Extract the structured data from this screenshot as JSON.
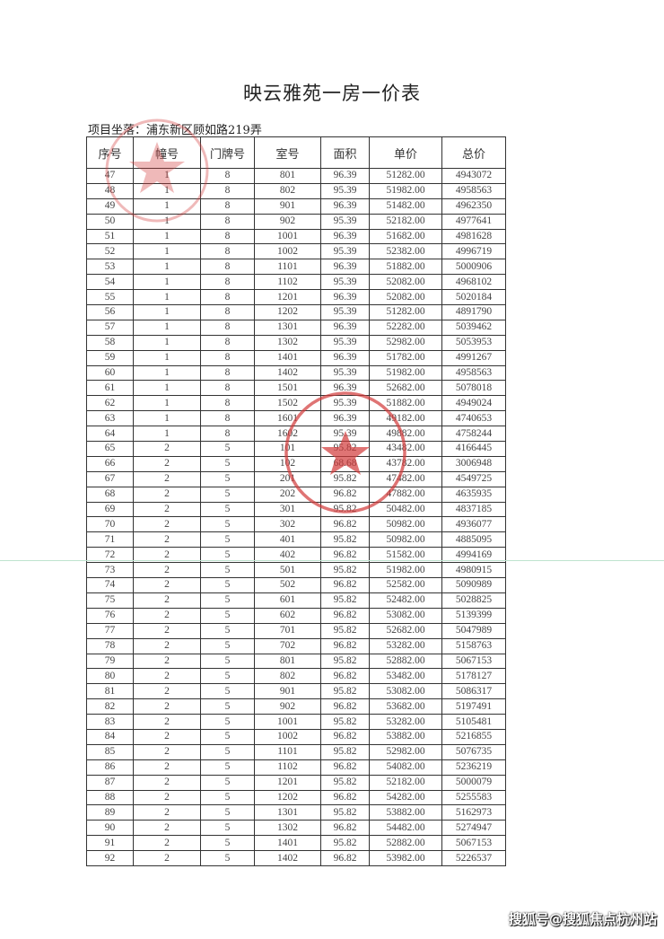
{
  "document": {
    "title": "映云雅苑一房一价表",
    "address": "项目坐落：浦东新区顾如路219弄",
    "watermark": "搜狐号@搜狐焦点杭州站",
    "stamp_color": "#d23a3a"
  },
  "table": {
    "headers": [
      "序号",
      "幢号",
      "门牌号",
      "室号",
      "面积",
      "单价",
      "总价"
    ],
    "rows": [
      [
        "47",
        "1",
        "8",
        "801",
        "96.39",
        "51282.00",
        "4943072"
      ],
      [
        "48",
        "1",
        "8",
        "802",
        "95.39",
        "51982.00",
        "4958563"
      ],
      [
        "49",
        "1",
        "8",
        "901",
        "96.39",
        "51482.00",
        "4962350"
      ],
      [
        "50",
        "1",
        "8",
        "902",
        "95.39",
        "52182.00",
        "4977641"
      ],
      [
        "51",
        "1",
        "8",
        "1001",
        "96.39",
        "51682.00",
        "4981628"
      ],
      [
        "52",
        "1",
        "8",
        "1002",
        "95.39",
        "52382.00",
        "4996719"
      ],
      [
        "53",
        "1",
        "8",
        "1101",
        "96.39",
        "51882.00",
        "5000906"
      ],
      [
        "54",
        "1",
        "8",
        "1102",
        "95.39",
        "52082.00",
        "4968102"
      ],
      [
        "55",
        "1",
        "8",
        "1201",
        "96.39",
        "52082.00",
        "5020184"
      ],
      [
        "56",
        "1",
        "8",
        "1202",
        "95.39",
        "51282.00",
        "4891790"
      ],
      [
        "57",
        "1",
        "8",
        "1301",
        "96.39",
        "52282.00",
        "5039462"
      ],
      [
        "58",
        "1",
        "8",
        "1302",
        "95.39",
        "52982.00",
        "5053953"
      ],
      [
        "59",
        "1",
        "8",
        "1401",
        "96.39",
        "51782.00",
        "4991267"
      ],
      [
        "60",
        "1",
        "8",
        "1402",
        "95.39",
        "51982.00",
        "4958563"
      ],
      [
        "61",
        "1",
        "8",
        "1501",
        "96.39",
        "52682.00",
        "5078018"
      ],
      [
        "62",
        "1",
        "8",
        "1502",
        "95.39",
        "51882.00",
        "4949024"
      ],
      [
        "63",
        "1",
        "8",
        "1601",
        "96.39",
        "49182.00",
        "4740653"
      ],
      [
        "64",
        "1",
        "8",
        "1602",
        "95.39",
        "49882.00",
        "4758244"
      ],
      [
        "65",
        "2",
        "5",
        "101",
        "95.82",
        "43482.00",
        "4166445"
      ],
      [
        "66",
        "2",
        "5",
        "102",
        "68.68",
        "43782.00",
        "3006948"
      ],
      [
        "67",
        "2",
        "5",
        "201",
        "95.82",
        "47482.00",
        "4549725"
      ],
      [
        "68",
        "2",
        "5",
        "202",
        "96.82",
        "47882.00",
        "4635935"
      ],
      [
        "69",
        "2",
        "5",
        "301",
        "95.82",
        "50482.00",
        "4837185"
      ],
      [
        "70",
        "2",
        "5",
        "302",
        "96.82",
        "50982.00",
        "4936077"
      ],
      [
        "71",
        "2",
        "5",
        "401",
        "95.82",
        "50982.00",
        "4885095"
      ],
      [
        "72",
        "2",
        "5",
        "402",
        "96.82",
        "51582.00",
        "4994169"
      ],
      [
        "73",
        "2",
        "5",
        "501",
        "95.82",
        "51982.00",
        "4980915"
      ],
      [
        "74",
        "2",
        "5",
        "502",
        "96.82",
        "52582.00",
        "5090989"
      ],
      [
        "75",
        "2",
        "5",
        "601",
        "95.82",
        "52482.00",
        "5028825"
      ],
      [
        "76",
        "2",
        "5",
        "602",
        "96.82",
        "53082.00",
        "5139399"
      ],
      [
        "77",
        "2",
        "5",
        "701",
        "95.82",
        "52682.00",
        "5047989"
      ],
      [
        "78",
        "2",
        "5",
        "702",
        "96.82",
        "53282.00",
        "5158763"
      ],
      [
        "79",
        "2",
        "5",
        "801",
        "95.82",
        "52882.00",
        "5067153"
      ],
      [
        "80",
        "2",
        "5",
        "802",
        "96.82",
        "53482.00",
        "5178127"
      ],
      [
        "81",
        "2",
        "5",
        "901",
        "95.82",
        "53082.00",
        "5086317"
      ],
      [
        "82",
        "2",
        "5",
        "902",
        "96.82",
        "53682.00",
        "5197491"
      ],
      [
        "83",
        "2",
        "5",
        "1001",
        "95.82",
        "53282.00",
        "5105481"
      ],
      [
        "84",
        "2",
        "5",
        "1002",
        "96.82",
        "53882.00",
        "5216855"
      ],
      [
        "85",
        "2",
        "5",
        "1101",
        "95.82",
        "52982.00",
        "5076735"
      ],
      [
        "86",
        "2",
        "5",
        "1102",
        "96.82",
        "54082.00",
        "5236219"
      ],
      [
        "87",
        "2",
        "5",
        "1201",
        "95.82",
        "52182.00",
        "5000079"
      ],
      [
        "88",
        "2",
        "5",
        "1202",
        "96.82",
        "54282.00",
        "5255583"
      ],
      [
        "89",
        "2",
        "5",
        "1301",
        "95.82",
        "53882.00",
        "5162973"
      ],
      [
        "90",
        "2",
        "5",
        "1302",
        "96.82",
        "54482.00",
        "5274947"
      ],
      [
        "91",
        "2",
        "5",
        "1401",
        "95.82",
        "52882.00",
        "5067153"
      ],
      [
        "92",
        "2",
        "5",
        "1402",
        "96.82",
        "53982.00",
        "5226537"
      ]
    ]
  }
}
